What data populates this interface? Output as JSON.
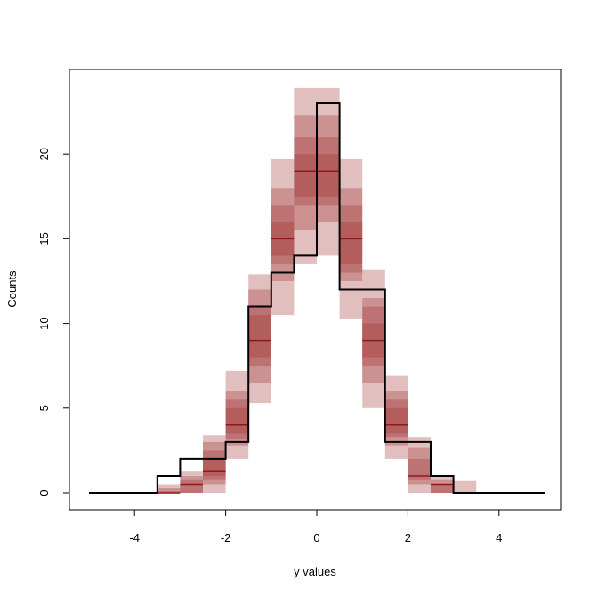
{
  "chart_data": {
    "type": "histogram",
    "title": "",
    "xlabel": "y values",
    "ylabel": "Counts",
    "xlim": [
      -5.4,
      5.4
    ],
    "ylim": [
      -1,
      25
    ],
    "xticks": [
      -4,
      -2,
      0,
      2,
      4
    ],
    "yticks": [
      0,
      5,
      10,
      15,
      20
    ],
    "grid": false,
    "colors": {
      "band": "#9d2a2a",
      "median": "#8b1a1a",
      "observed": "#000000"
    },
    "band_opacity": 0.3,
    "bin_width": 0.5,
    "observed_series": {
      "name": "",
      "x_start": [
        -5.0,
        -4.5,
        -4.0,
        -3.5,
        -3.0,
        -2.5,
        -2.0,
        -1.5,
        -1.0,
        -0.5,
        0.0,
        0.5,
        1.0,
        1.5,
        2.0,
        2.5,
        3.0,
        3.5,
        4.0,
        4.5
      ],
      "counts": [
        0,
        0,
        0,
        1,
        2,
        2,
        3,
        11,
        13,
        14,
        23,
        12,
        12,
        3,
        3,
        1,
        0,
        0,
        0,
        0
      ]
    },
    "replicate_bins": [
      {
        "x0": -3.5,
        "x1": -3.0,
        "median": 0,
        "intervals": [
          [
            0,
            0.5
          ],
          [
            0,
            0.3
          ],
          [
            0,
            0.1
          ]
        ]
      },
      {
        "x0": -3.0,
        "x1": -2.5,
        "median": 0.5,
        "intervals": [
          [
            0,
            1.3
          ],
          [
            0,
            1.0
          ],
          [
            0,
            0.8
          ]
        ]
      },
      {
        "x0": -2.5,
        "x1": -2.0,
        "median": 1.3,
        "intervals": [
          [
            0,
            3.4
          ],
          [
            0.5,
            3.0
          ],
          [
            0.8,
            2.5
          ],
          [
            1.0,
            2.0
          ]
        ]
      },
      {
        "x0": -2.0,
        "x1": -1.5,
        "median": 4.0,
        "intervals": [
          [
            2.0,
            7.2
          ],
          [
            2.8,
            6.0
          ],
          [
            3.2,
            5.5
          ],
          [
            3.5,
            5.0
          ]
        ]
      },
      {
        "x0": -1.5,
        "x1": -1.0,
        "median": 9.0,
        "intervals": [
          [
            5.3,
            12.9
          ],
          [
            6.5,
            12.0
          ],
          [
            7.5,
            11.0
          ],
          [
            8.0,
            10.5
          ]
        ]
      },
      {
        "x0": -1.0,
        "x1": -0.5,
        "median": 15.0,
        "intervals": [
          [
            10.5,
            19.7
          ],
          [
            12.5,
            18.0
          ],
          [
            13.5,
            17.0
          ],
          [
            14.0,
            16.0
          ]
        ]
      },
      {
        "x0": -0.5,
        "x1": 0.0,
        "median": 19.0,
        "intervals": [
          [
            13.5,
            23.9
          ],
          [
            15.5,
            22.3
          ],
          [
            17.0,
            21.0
          ],
          [
            17.5,
            20.0
          ]
        ]
      },
      {
        "x0": 0.0,
        "x1": 0.5,
        "median": 19.0,
        "intervals": [
          [
            14.0,
            23.9
          ],
          [
            16.0,
            22.3
          ],
          [
            17.0,
            21.0
          ],
          [
            17.5,
            20.0
          ]
        ]
      },
      {
        "x0": 0.5,
        "x1": 1.0,
        "median": 15.0,
        "intervals": [
          [
            10.3,
            19.7
          ],
          [
            12.5,
            18.0
          ],
          [
            13.0,
            17.0
          ],
          [
            13.5,
            16.0
          ]
        ]
      },
      {
        "x0": 1.0,
        "x1": 1.5,
        "median": 9.0,
        "intervals": [
          [
            5.0,
            13.2
          ],
          [
            6.5,
            11.5
          ],
          [
            7.5,
            11.0
          ],
          [
            8.0,
            10.0
          ]
        ]
      },
      {
        "x0": 1.5,
        "x1": 2.0,
        "median": 4.0,
        "intervals": [
          [
            2.0,
            6.9
          ],
          [
            2.8,
            6.0
          ],
          [
            3.3,
            5.5
          ],
          [
            3.5,
            5.0
          ]
        ]
      },
      {
        "x0": 2.0,
        "x1": 2.5,
        "median": 1.0,
        "intervals": [
          [
            0,
            3.3
          ],
          [
            0.5,
            2.7
          ],
          [
            0.8,
            2.0
          ]
        ]
      },
      {
        "x0": 2.5,
        "x1": 3.0,
        "median": 0.5,
        "intervals": [
          [
            0,
            1.0
          ],
          [
            0,
            0.8
          ],
          [
            0,
            0.5
          ]
        ]
      },
      {
        "x0": 3.0,
        "x1": 3.5,
        "median": 0,
        "intervals": [
          [
            0,
            0.7
          ]
        ]
      }
    ]
  }
}
